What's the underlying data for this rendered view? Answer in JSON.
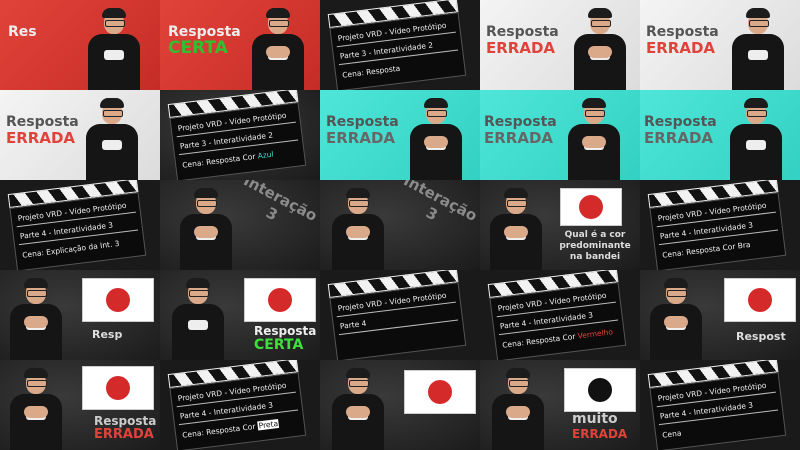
{
  "colors": {
    "red_bg": "#d6392f",
    "white_bg": "#e8e8e8",
    "cyan_bg": "#40dccf",
    "certa": "#2fbf2f",
    "errada": "#e0433a"
  },
  "tiles": {
    "t1": {
      "text": "Res"
    },
    "t2": {
      "word": "Resposta",
      "verdict": "CERTA"
    },
    "t3": {
      "line1": "Projeto VRD - Vídeo Protótipo",
      "line2": "Parte 3 - Interatividade 2",
      "line3": "Cena: Resposta"
    },
    "t4": {
      "word": "Resposta",
      "verdict": "ERRADA"
    },
    "t5": {
      "word": "Resposta",
      "verdict": "ERRADA"
    },
    "t6": {
      "word": "Resposta",
      "verdict": "ERRADA"
    },
    "t7": {
      "line1": "Projeto VRD - Vídeo Protótipo",
      "line2": "Parte 3 - Interatividade 2",
      "line3": "Cena: Resposta Cor",
      "line3_hl": "Azul"
    },
    "t8": {
      "word": "Resposta",
      "verdict": "ERRADA"
    },
    "t9": {
      "word": "Resposta",
      "verdict": "ERRADA"
    },
    "t10": {
      "word": "Resposta",
      "verdict": "ERRADA"
    },
    "t11": {
      "line1": "Projeto VRD - Vídeo Protótipo",
      "line2": "Parte 4 - Interatividade 3",
      "line3": "Cena: Explicação da Int. 3"
    },
    "t12": {
      "word": "Interação",
      "num": "3"
    },
    "t13": {
      "word": "Interação",
      "num": "3"
    },
    "t14": {
      "question": "Qual é a cor predominante na bandei"
    },
    "t15": {
      "line1": "Projeto VRD - Vídeo Protótipo",
      "line2": "Parte 4 - Interatividade 3",
      "line3": "Cena: Resposta Cor Bra"
    },
    "t16": {
      "text": "Resp"
    },
    "t17": {
      "word": "Resposta",
      "verdict": "CERTA"
    },
    "t18": {
      "line1": "Projeto VRD - Vídeo Protótipo",
      "line2": "Parte 4"
    },
    "t19": {
      "line1": "Projeto VRD - Vídeo Protótipo",
      "line2": "Parte 4 - Interatividade 3",
      "line3": "Cena: Resposta Cor",
      "line3_hl": "Vermelho"
    },
    "t20": {
      "text": "Respost"
    },
    "t21": {
      "word": "Resposta",
      "verdict": "ERRADA"
    },
    "t22": {
      "line1": "Projeto VRD - Vídeo Protótipo",
      "line2": "Parte 4 - Interatividade 3",
      "line3": "Cena: Resposta Cor",
      "line3_hl": "Preta"
    },
    "t25": {
      "line1": "Projeto VRD - Vídeo Protótipo",
      "line2": "Parte 4 - Interatividade 3",
      "line3": "Cena"
    },
    "t24": {
      "word": "muito",
      "verdict": "ERRADA"
    }
  }
}
